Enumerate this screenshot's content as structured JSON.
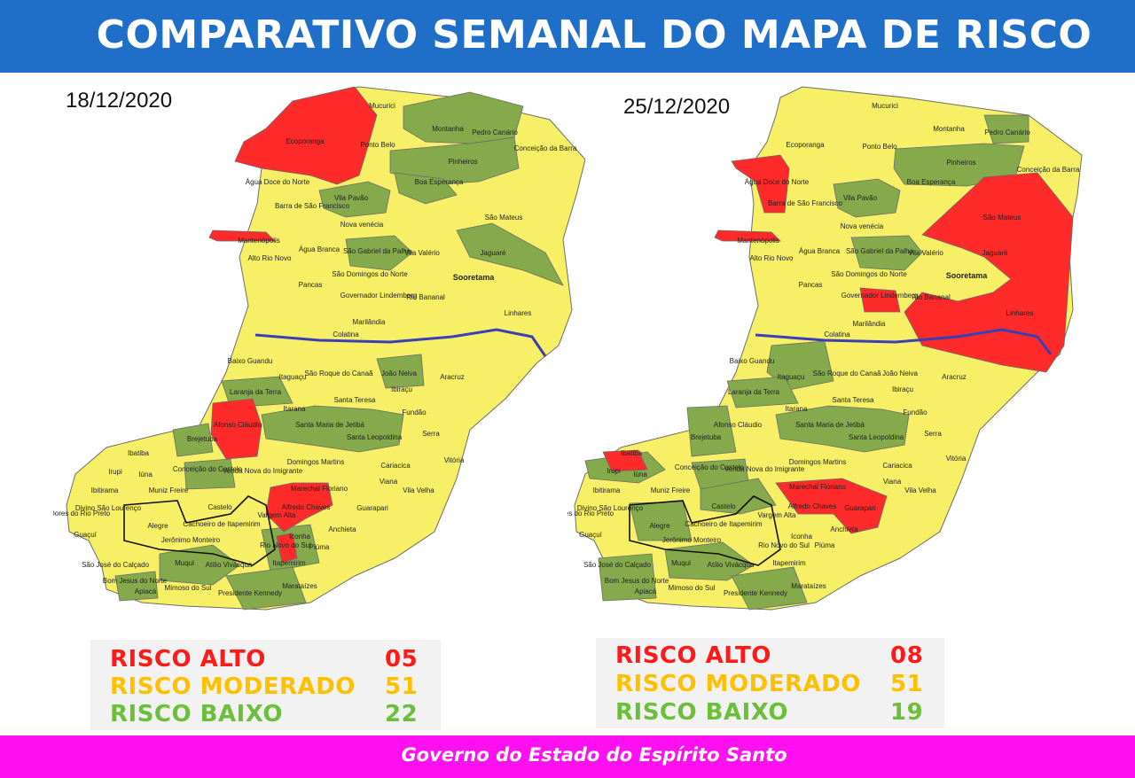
{
  "title": "COMPARATIVO SEMANAL DO MAPA DE RISCO",
  "footer": "Governo do Estado do Espírito Santo",
  "colors": {
    "header": "#1f6fc9",
    "footer": "#ff10f0",
    "alto": "#ff2a2a",
    "moderado": "#f7f067",
    "baixo": "#84aa4c",
    "river": "#3b3fb5"
  },
  "maps": [
    {
      "date": "18/12/2020",
      "legend": [
        {
          "label": "RISCO ALTO",
          "count": "05",
          "color": "#ff1a1a"
        },
        {
          "label": "RISCO MODERADO",
          "count": "51",
          "color": "#ffc000"
        },
        {
          "label": "RISCO BAIXO",
          "count": "22",
          "color": "#6cbf3a"
        }
      ],
      "labels": {
        "mucurici": "Mucurici",
        "ecoporanga": "Ecoporanga",
        "montanha": "Montanha",
        "pedro_canario": "Pedro Canário",
        "ponto_belo": "Ponto Belo",
        "pinheiros": "Pinheiros",
        "conceicao_barra": "Conceição da Barra",
        "agua_doce": "Água Doce do Norte",
        "barra_sao_francisco": "Barra de São Francisco",
        "vila_pavao": "Vila Pavão",
        "boa_esperanca": "Boa Esperança",
        "sao_mateus": "São Mateus",
        "mantenopolis": "Mantenópolis",
        "nova_venecia": "Nova venécia",
        "alto_rio_novo": "Alto Rio Novo",
        "agua_branca": "Água Branca",
        "sao_gabriel": "São Gabriel da Palha",
        "vila_valerio": "Vila Valério",
        "jaguare": "Jaguaré",
        "pancas": "Pancas",
        "sao_domingos": "São Domingos do Norte",
        "sooretama": "Sooretama",
        "governador": "Governador Lindemberg",
        "rio_bananal": "Rio Bananal",
        "linhares": "Linhares",
        "marilandia": "Marilândia",
        "colatina": "Colatina",
        "baixo_guandu": "Baixo Guandu",
        "itaguacu": "Itaguaçu",
        "sao_roque": "São Roque do Canaã",
        "joao_neiva": "João Neiva",
        "ibiracu": "Ibiraçu",
        "aracruz": "Aracruz",
        "laranja": "Laranja da Terra",
        "itarana": "Itarana",
        "santa_teresa": "Santa Teresa",
        "fundao": "Fundão",
        "afonso": "Afonso Cláudio",
        "santa_maria": "Santa Maria de Jetibá",
        "santa_leopoldina": "Santa Leopoldina",
        "serra": "Serra",
        "brejetuba": "Brejetuba",
        "vitoria": "Vitória",
        "ibatiba": "Ibatiba",
        "domingos_martins": "Domingos Martins",
        "conceicao_castelo": "Conceição do Castelo",
        "venda_nova": "Venda Nova do Imigrante",
        "cariacica": "Cariacica",
        "irupi": "Irupi",
        "iuna": "Iúna",
        "ibitirama": "Ibitirama",
        "muniz_freire": "Muniz Freire",
        "marechal": "Marechal Floriano",
        "viana": "Viana",
        "vila_velha": "Vila Velha",
        "divino": "Divino São Lourenço",
        "dores": "Dores do Rio Preto",
        "castelo": "Castelo",
        "alfredo": "Alfredo Chaves",
        "vargem_alta": "Vargem Alta",
        "guarapari": "Guarapari",
        "guacui": "Guaçuí",
        "alegre": "Alegre",
        "cachoeiro": "Cachoeiro de Itapemirim",
        "anchieta": "Anchieta",
        "jeronimo": "Jerônimo Monteiro",
        "iconha": "Iconha",
        "rio_novo": "Rio Novo do Sul",
        "piuma": "Piúma",
        "sao_jose_calcado": "São José do Calçado",
        "muqui": "Muqui",
        "atilio": "Atílio Vivácqua",
        "itapemirim": "Itapemirim",
        "bom_jesus": "Bom Jesus do Norte",
        "apiaca": "Apiacá",
        "mimoso": "Mimoso do Sul",
        "presidente_kennedy": "Presidente Kennedy",
        "marataizes": "Marataízes"
      }
    },
    {
      "date": "25/12/2020",
      "legend": [
        {
          "label": "RISCO ALTO",
          "count": "08",
          "color": "#ff1a1a"
        },
        {
          "label": "RISCO MODERADO",
          "count": "51",
          "color": "#ffc000"
        },
        {
          "label": "RISCO BAIXO",
          "count": "19",
          "color": "#6cbf3a"
        }
      ]
    }
  ]
}
